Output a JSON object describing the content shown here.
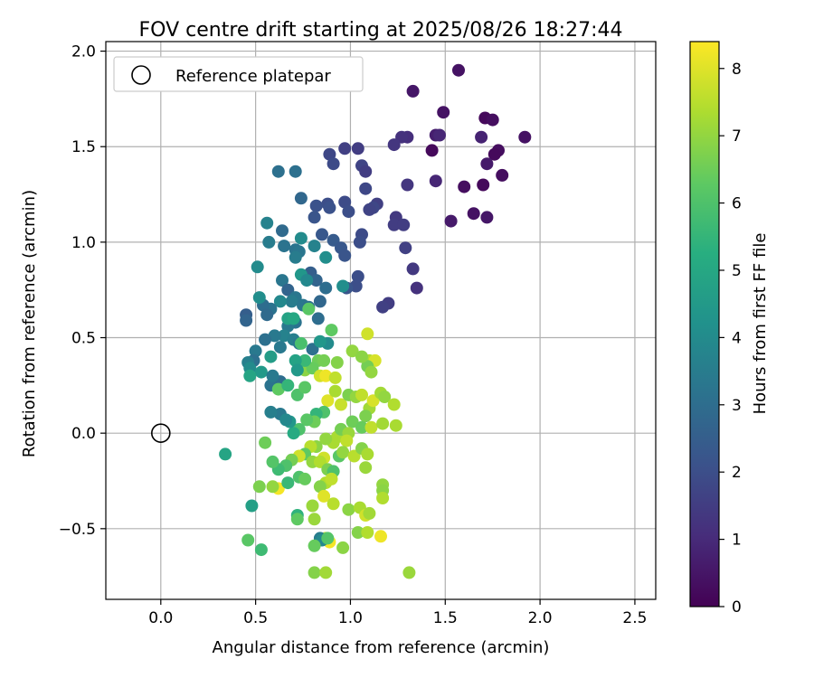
{
  "chart_data": {
    "type": "scatter",
    "title": "FOV centre drift starting at 2025/08/26 18:27:44",
    "xlabel": "Angular distance from reference (arcmin)",
    "ylabel": "Rotation from reference (arcmin)",
    "xlim": [
      -0.29,
      2.61
    ],
    "ylim": [
      -0.87,
      2.05
    ],
    "xticks": [
      "0.0",
      "0.5",
      "1.0",
      "1.5",
      "2.0",
      "2.5"
    ],
    "xtick_values": [
      0,
      0.5,
      1,
      1.5,
      2,
      2.5
    ],
    "yticks": [
      "−0.5",
      "0.0",
      "0.5",
      "1.0",
      "1.5",
      "2.0"
    ],
    "ytick_values": [
      -0.5,
      0,
      0.5,
      1,
      1.5,
      2
    ],
    "grid": true,
    "legend": {
      "placement": "upper-left",
      "entries": [
        "Reference platepar"
      ]
    },
    "colormap": "viridis",
    "colorbar": {
      "label": "Hours from first FF file",
      "range": [
        0,
        8.4
      ],
      "ticks": [
        "0",
        "1",
        "2",
        "3",
        "4",
        "5",
        "6",
        "7",
        "8"
      ],
      "tick_values": [
        0,
        1,
        2,
        3,
        4,
        5,
        6,
        7,
        8
      ]
    },
    "reference_point": {
      "name": "Reference platepar",
      "x": 0.0,
      "y": 0.0,
      "marker": "open-circle"
    },
    "series": [
      {
        "points": [
          [
            1.57,
            1.9,
            0.4
          ],
          [
            1.33,
            1.79,
            0.5
          ],
          [
            1.49,
            1.68,
            0.4
          ],
          [
            1.71,
            1.65,
            0.2
          ],
          [
            1.75,
            1.64,
            0.3
          ],
          [
            1.78,
            1.48,
            0.3
          ],
          [
            1.76,
            1.46,
            0.2
          ],
          [
            1.72,
            1.41,
            0.6
          ],
          [
            1.8,
            1.35,
            0.3
          ],
          [
            1.92,
            1.55,
            0.4
          ],
          [
            1.69,
            1.55,
            0.8
          ],
          [
            1.45,
            1.56,
            0.7
          ],
          [
            1.47,
            1.56,
            0.9
          ],
          [
            1.43,
            1.48,
            0.2
          ],
          [
            1.6,
            1.29,
            0.3
          ],
          [
            1.7,
            1.3,
            0.2
          ],
          [
            1.65,
            1.15,
            0.4
          ],
          [
            1.72,
            1.13,
            0.5
          ],
          [
            1.53,
            1.11,
            0.6
          ],
          [
            1.45,
            1.32,
            0.9
          ],
          [
            1.3,
            1.55,
            1.1
          ],
          [
            1.27,
            1.55,
            1.2
          ],
          [
            1.23,
            1.51,
            1.3
          ],
          [
            1.3,
            1.3,
            1.3
          ],
          [
            1.24,
            1.13,
            1.4
          ],
          [
            1.23,
            1.09,
            1.5
          ],
          [
            1.28,
            1.09,
            1.5
          ],
          [
            1.29,
            0.97,
            1.6
          ],
          [
            1.33,
            0.86,
            1.4
          ],
          [
            1.35,
            0.76,
            1.2
          ],
          [
            1.2,
            0.68,
            1.5
          ],
          [
            1.17,
            0.66,
            1.6
          ],
          [
            1.04,
            1.49,
            1.5
          ],
          [
            0.97,
            1.49,
            1.6
          ],
          [
            0.89,
            1.46,
            1.8
          ],
          [
            0.91,
            1.41,
            1.9
          ],
          [
            1.06,
            1.4,
            1.7
          ],
          [
            1.08,
            1.37,
            1.5
          ],
          [
            1.08,
            1.28,
            1.8
          ],
          [
            1.14,
            1.2,
            1.6
          ],
          [
            1.12,
            1.18,
            1.8
          ],
          [
            1.1,
            1.17,
            1.7
          ],
          [
            0.97,
            1.21,
            1.9
          ],
          [
            0.99,
            1.16,
            2.0
          ],
          [
            0.88,
            1.2,
            2.0
          ],
          [
            0.82,
            1.19,
            2.1
          ],
          [
            0.89,
            1.18,
            2.1
          ],
          [
            0.81,
            1.13,
            2.2
          ],
          [
            0.85,
            1.04,
            2.3
          ],
          [
            0.91,
            1.01,
            2.4
          ],
          [
            0.95,
            0.97,
            2.3
          ],
          [
            0.97,
            0.93,
            2.2
          ],
          [
            1.06,
            1.04,
            1.9
          ],
          [
            1.05,
            1.0,
            2.0
          ],
          [
            1.04,
            0.82,
            2.0
          ],
          [
            1.03,
            0.77,
            2.0
          ],
          [
            0.98,
            0.76,
            2.2
          ],
          [
            0.74,
            1.23,
            2.8
          ],
          [
            0.71,
            1.37,
            3.1
          ],
          [
            0.62,
            1.37,
            3.1
          ],
          [
            0.64,
            1.06,
            2.9
          ],
          [
            0.71,
            0.96,
            3.2
          ],
          [
            0.73,
            0.95,
            3.3
          ],
          [
            0.79,
            0.84,
            2.5
          ],
          [
            0.82,
            0.8,
            2.7
          ],
          [
            0.84,
            0.69,
            2.8
          ],
          [
            0.87,
            0.76,
            3.0
          ],
          [
            0.81,
            0.98,
            3.7
          ],
          [
            0.87,
            0.92,
            4.1
          ],
          [
            0.74,
            1.02,
            4.0
          ],
          [
            0.71,
            0.92,
            3.5
          ],
          [
            0.56,
            1.1,
            3.7
          ],
          [
            0.57,
            1.0,
            3.5
          ],
          [
            0.65,
            0.98,
            3.2
          ],
          [
            0.64,
            0.8,
            3.3
          ],
          [
            0.67,
            0.75,
            2.7
          ],
          [
            0.71,
            0.71,
            3.3
          ],
          [
            0.69,
            0.69,
            3.5
          ],
          [
            0.75,
            0.67,
            3.3
          ],
          [
            0.78,
            0.66,
            3.1
          ],
          [
            0.63,
            0.69,
            3.9
          ],
          [
            0.58,
            0.65,
            3.2
          ],
          [
            0.54,
            0.67,
            3.0
          ],
          [
            0.56,
            0.62,
            2.9
          ],
          [
            0.45,
            0.62,
            2.5
          ],
          [
            0.45,
            0.59,
            2.7
          ],
          [
            0.52,
            0.71,
            4.1
          ],
          [
            0.51,
            0.87,
            4.0
          ],
          [
            0.74,
            0.83,
            4.4
          ],
          [
            0.77,
            0.8,
            3.9
          ],
          [
            0.96,
            0.77,
            4.1
          ],
          [
            0.83,
            0.6,
            3.0
          ],
          [
            0.71,
            0.58,
            3.2
          ],
          [
            0.67,
            0.56,
            3.4
          ],
          [
            0.65,
            0.51,
            3.7
          ],
          [
            0.6,
            0.51,
            3.4
          ],
          [
            0.55,
            0.49,
            3.1
          ],
          [
            0.63,
            0.45,
            3.4
          ],
          [
            0.7,
            0.49,
            3.6
          ],
          [
            0.73,
            0.47,
            3.3
          ],
          [
            0.8,
            0.44,
            3.1
          ],
          [
            0.88,
            0.47,
            4.0
          ],
          [
            0.84,
            0.48,
            4.4
          ],
          [
            0.5,
            0.43,
            3.4
          ],
          [
            0.49,
            0.38,
            3.1
          ],
          [
            0.46,
            0.37,
            3.6
          ],
          [
            0.47,
            0.34,
            4.0
          ],
          [
            0.53,
            0.32,
            4.5
          ],
          [
            0.47,
            0.3,
            4.9
          ],
          [
            0.58,
            0.4,
            4.6
          ],
          [
            0.67,
            0.6,
            4.8
          ],
          [
            0.7,
            0.6,
            5.0
          ],
          [
            0.78,
            0.65,
            6.2
          ],
          [
            0.74,
            0.47,
            5.9
          ],
          [
            0.9,
            0.54,
            6.3
          ],
          [
            0.83,
            0.38,
            6.5
          ],
          [
            0.86,
            0.38,
            6.6
          ],
          [
            0.93,
            0.37,
            6.8
          ],
          [
            0.76,
            0.33,
            6.9
          ],
          [
            0.8,
            0.34,
            6.4
          ],
          [
            0.76,
            0.38,
            5.6
          ],
          [
            0.71,
            0.38,
            4.8
          ],
          [
            0.72,
            0.33,
            4.5
          ],
          [
            0.63,
            0.27,
            3.0
          ],
          [
            0.58,
            0.25,
            3.2
          ],
          [
            0.59,
            0.3,
            3.4
          ],
          [
            0.62,
            0.23,
            6.3
          ],
          [
            0.67,
            0.25,
            5.5
          ],
          [
            0.72,
            0.2,
            6.0
          ],
          [
            0.76,
            0.24,
            6.2
          ],
          [
            0.84,
            0.3,
            7.8
          ],
          [
            0.87,
            0.3,
            8.2
          ],
          [
            0.92,
            0.29,
            7.6
          ],
          [
            0.88,
            0.17,
            8.0
          ],
          [
            0.92,
            0.22,
            7.3
          ],
          [
            0.86,
            0.11,
            6.0
          ],
          [
            0.82,
            0.1,
            5.5
          ],
          [
            0.81,
            0.06,
            6.5
          ],
          [
            0.77,
            0.07,
            6.2
          ],
          [
            0.73,
            0.02,
            6.0
          ],
          [
            0.7,
            0.0,
            5.1
          ],
          [
            0.68,
            0.06,
            4.4
          ],
          [
            0.63,
            0.1,
            3.4
          ],
          [
            0.58,
            0.11,
            3.6
          ],
          [
            0.66,
            0.07,
            3.9
          ],
          [
            0.95,
            0.15,
            7.7
          ],
          [
            0.99,
            0.2,
            6.7
          ],
          [
            1.03,
            0.19,
            7.0
          ],
          [
            1.06,
            0.2,
            7.6
          ],
          [
            1.1,
            0.13,
            7.2
          ],
          [
            1.12,
            0.17,
            7.9
          ],
          [
            1.16,
            0.21,
            7.2
          ],
          [
            1.18,
            0.19,
            7.0
          ],
          [
            1.23,
            0.15,
            7.4
          ],
          [
            1.08,
            0.09,
            6.7
          ],
          [
            1.01,
            0.06,
            6.5
          ],
          [
            1.06,
            0.03,
            6.4
          ],
          [
            1.11,
            0.03,
            7.6
          ],
          [
            1.17,
            0.05,
            7.2
          ],
          [
            1.24,
            0.04,
            7.3
          ],
          [
            1.1,
            0.38,
            7.4
          ],
          [
            1.13,
            0.38,
            7.9
          ],
          [
            1.09,
            0.35,
            6.6
          ],
          [
            1.11,
            0.32,
            7.0
          ],
          [
            1.01,
            0.43,
            7.0
          ],
          [
            1.06,
            0.4,
            6.9
          ],
          [
            1.09,
            0.52,
            7.8
          ],
          [
            0.93,
            -0.02,
            7.3
          ],
          [
            0.95,
            0.02,
            6.6
          ],
          [
            0.99,
            0.0,
            7.1
          ],
          [
            0.98,
            -0.04,
            7.6
          ],
          [
            0.91,
            -0.05,
            7.3
          ],
          [
            0.87,
            -0.03,
            7.0
          ],
          [
            0.82,
            -0.07,
            6.9
          ],
          [
            0.79,
            -0.07,
            7.5
          ],
          [
            0.76,
            -0.11,
            6.3
          ],
          [
            0.73,
            -0.12,
            7.8
          ],
          [
            0.69,
            -0.14,
            6.6
          ],
          [
            0.66,
            -0.17,
            6.0
          ],
          [
            0.62,
            -0.19,
            5.7
          ],
          [
            0.59,
            -0.15,
            6.1
          ],
          [
            0.55,
            -0.05,
            6.5
          ],
          [
            0.34,
            -0.11,
            4.9
          ],
          [
            0.48,
            -0.38,
            4.7
          ],
          [
            0.52,
            -0.28,
            6.7
          ],
          [
            0.62,
            -0.29,
            8.3
          ],
          [
            0.59,
            -0.28,
            7.0
          ],
          [
            0.67,
            -0.26,
            5.6
          ],
          [
            0.73,
            -0.23,
            6.0
          ],
          [
            0.76,
            -0.24,
            6.4
          ],
          [
            0.8,
            -0.15,
            7.0
          ],
          [
            0.86,
            -0.13,
            7.8
          ],
          [
            0.84,
            -0.15,
            7.4
          ],
          [
            0.88,
            -0.19,
            6.7
          ],
          [
            0.91,
            -0.2,
            6.0
          ],
          [
            0.94,
            -0.12,
            6.2
          ],
          [
            0.96,
            -0.1,
            7.0
          ],
          [
            1.02,
            -0.12,
            7.5
          ],
          [
            1.06,
            -0.08,
            6.8
          ],
          [
            1.09,
            -0.11,
            7.3
          ],
          [
            1.08,
            -0.18,
            7.1
          ],
          [
            0.87,
            -0.26,
            7.4
          ],
          [
            0.84,
            -0.28,
            6.8
          ],
          [
            0.9,
            -0.24,
            7.6
          ],
          [
            0.86,
            -0.33,
            8.0
          ],
          [
            0.91,
            -0.37,
            7.5
          ],
          [
            0.8,
            -0.38,
            7.1
          ],
          [
            0.72,
            -0.43,
            5.4
          ],
          [
            0.72,
            -0.45,
            6.3
          ],
          [
            0.81,
            -0.45,
            7.1
          ],
          [
            0.99,
            -0.4,
            6.9
          ],
          [
            1.05,
            -0.39,
            7.3
          ],
          [
            1.08,
            -0.43,
            7.8
          ],
          [
            1.1,
            -0.42,
            7.2
          ],
          [
            1.04,
            -0.52,
            6.8
          ],
          [
            1.09,
            -0.52,
            7.4
          ],
          [
            1.16,
            -0.54,
            8.2
          ],
          [
            1.17,
            -0.27,
            7.0
          ],
          [
            1.17,
            -0.3,
            6.9
          ],
          [
            1.17,
            -0.34,
            7.4
          ],
          [
            0.87,
            -0.55,
            7.8
          ],
          [
            0.89,
            -0.57,
            8.3
          ],
          [
            0.84,
            -0.55,
            3.5
          ],
          [
            0.85,
            -0.56,
            3.9
          ],
          [
            0.88,
            -0.55,
            6.1
          ],
          [
            0.96,
            -0.6,
            6.9
          ],
          [
            0.81,
            -0.59,
            6.4
          ],
          [
            0.46,
            -0.56,
            6.2
          ],
          [
            0.53,
            -0.61,
            5.7
          ],
          [
            0.81,
            -0.73,
            6.8
          ],
          [
            0.87,
            -0.73,
            7.2
          ],
          [
            1.31,
            -0.73,
            7.1
          ]
        ]
      }
    ]
  }
}
